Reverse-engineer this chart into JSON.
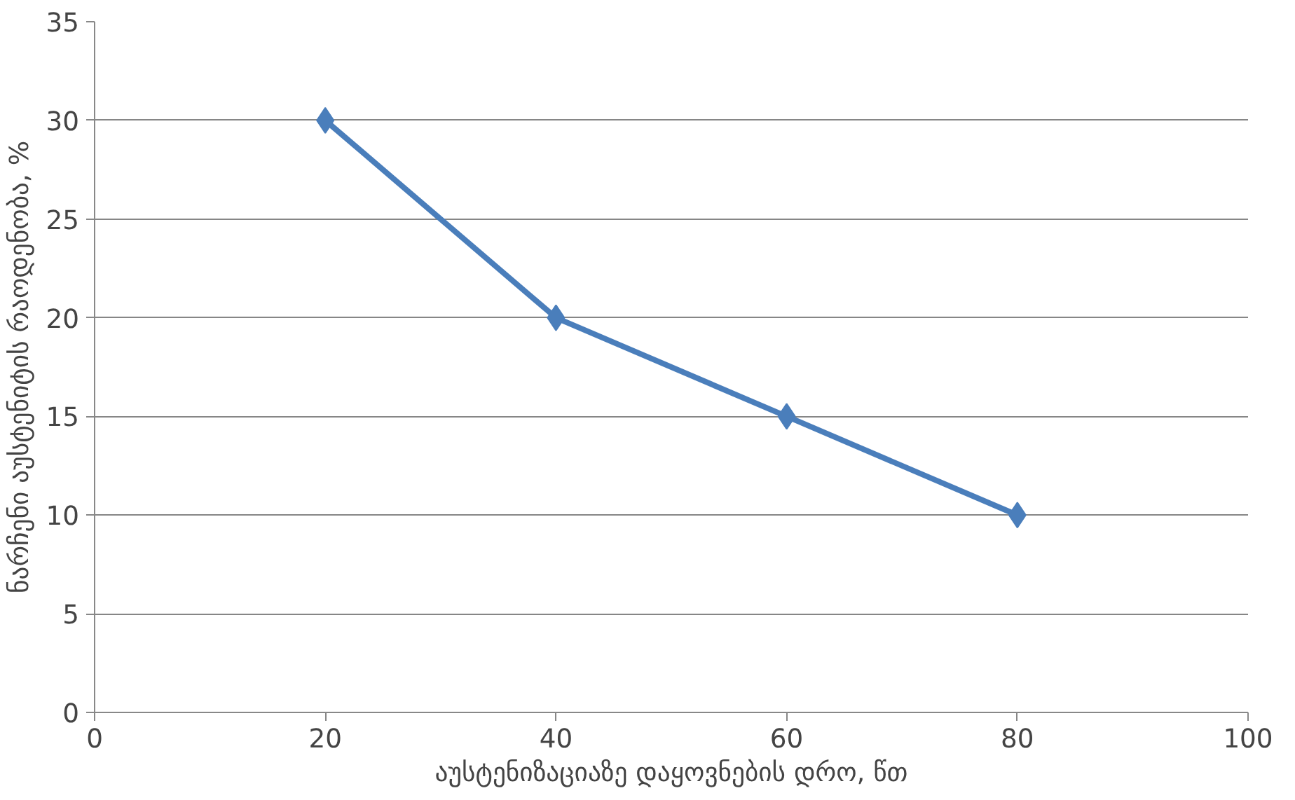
{
  "chart_data": {
    "type": "line",
    "xlabel": "აუსტენიზაციაზე დაყოვნების დრო, წთ",
    "ylabel": "ნარჩენი აუსტენიტის რაოდენობა, %",
    "x": [
      20,
      40,
      60,
      80
    ],
    "series": [
      {
        "color": "#4a7ebb",
        "values": [
          30,
          20,
          15,
          10
        ]
      }
    ],
    "xlim": [
      0,
      100
    ],
    "xticks": [
      0,
      20,
      40,
      60,
      80,
      100
    ],
    "ylim": [
      0,
      35
    ],
    "yticks": [
      0,
      5,
      10,
      15,
      20,
      25,
      30,
      35
    ],
    "grid": "y",
    "marker": "diamond",
    "line_style": "solid"
  }
}
